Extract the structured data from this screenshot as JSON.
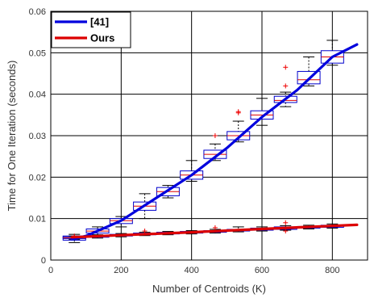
{
  "chart_data": {
    "type": "line",
    "xlabel": "Number of Centroids (K)",
    "ylabel": "Time for One Iteration (seconds)",
    "xlim": [
      0,
      900
    ],
    "ylim": [
      0,
      0.06
    ],
    "xticks": [
      0,
      200,
      400,
      600,
      800
    ],
    "yticks": [
      0,
      0.01,
      0.02,
      0.03,
      0.04,
      0.05,
      0.06
    ],
    "xtick_labels": [
      "0",
      "200",
      "400",
      "600",
      "800"
    ],
    "ytick_labels": [
      "0",
      "0.01",
      "0.02",
      "0.03",
      "0.04",
      "0.05",
      "0.06"
    ],
    "grid": true,
    "legend_position": "top-left",
    "series": [
      {
        "name": "[41]",
        "color": "#0000dd",
        "x": [
          60,
          100,
          200,
          300,
          400,
          500,
          600,
          700,
          800,
          870
        ],
        "values": [
          0.005,
          0.0058,
          0.0095,
          0.015,
          0.0205,
          0.027,
          0.0345,
          0.041,
          0.049,
          0.052
        ],
        "boxes": [
          {
            "x": 67,
            "q1": 0.0048,
            "median": 0.0052,
            "q3": 0.0058,
            "whisker_low": 0.0042,
            "whisker_high": 0.0062,
            "outliers": []
          },
          {
            "x": 133,
            "q1": 0.0065,
            "median": 0.007,
            "q3": 0.0075,
            "whisker_low": 0.0058,
            "whisker_high": 0.008,
            "outliers": []
          },
          {
            "x": 200,
            "q1": 0.0088,
            "median": 0.0095,
            "q3": 0.01,
            "whisker_low": 0.008,
            "whisker_high": 0.0105,
            "outliers": []
          },
          {
            "x": 267,
            "q1": 0.012,
            "median": 0.013,
            "q3": 0.014,
            "whisker_low": 0.01,
            "whisker_high": 0.016,
            "outliers": []
          },
          {
            "x": 333,
            "q1": 0.0155,
            "median": 0.0165,
            "q3": 0.0175,
            "whisker_low": 0.015,
            "whisker_high": 0.018,
            "outliers": []
          },
          {
            "x": 400,
            "q1": 0.0195,
            "median": 0.0205,
            "q3": 0.0215,
            "whisker_low": 0.019,
            "whisker_high": 0.024,
            "outliers": []
          },
          {
            "x": 467,
            "q1": 0.0245,
            "median": 0.0255,
            "q3": 0.0265,
            "whisker_low": 0.024,
            "whisker_high": 0.028,
            "outliers": [
              0.03
            ]
          },
          {
            "x": 533,
            "q1": 0.029,
            "median": 0.03,
            "q3": 0.031,
            "whisker_low": 0.0285,
            "whisker_high": 0.0335,
            "outliers": [
              0.0355,
              0.0358
            ]
          },
          {
            "x": 600,
            "q1": 0.034,
            "median": 0.035,
            "q3": 0.036,
            "whisker_low": 0.0325,
            "whisker_high": 0.039,
            "outliers": []
          },
          {
            "x": 667,
            "q1": 0.038,
            "median": 0.0385,
            "q3": 0.0395,
            "whisker_low": 0.037,
            "whisker_high": 0.0405,
            "outliers": [
              0.042,
              0.0465
            ]
          },
          {
            "x": 733,
            "q1": 0.0425,
            "median": 0.0435,
            "q3": 0.0455,
            "whisker_low": 0.042,
            "whisker_high": 0.049,
            "outliers": []
          },
          {
            "x": 800,
            "q1": 0.0475,
            "median": 0.049,
            "q3": 0.0505,
            "whisker_low": 0.047,
            "whisker_high": 0.053,
            "outliers": []
          }
        ]
      },
      {
        "name": "Ours",
        "color": "#dd0000",
        "x": [
          60,
          200,
          400,
          600,
          870
        ],
        "values": [
          0.0055,
          0.006,
          0.0067,
          0.0075,
          0.0085
        ],
        "boxes": [
          {
            "x": 67,
            "q1": 0.0052,
            "median": 0.0054,
            "q3": 0.0056,
            "whisker_low": 0.005,
            "whisker_high": 0.0058,
            "outliers": [
              0.0058
            ]
          },
          {
            "x": 133,
            "q1": 0.0055,
            "median": 0.0057,
            "q3": 0.0059,
            "whisker_low": 0.0053,
            "whisker_high": 0.0061,
            "outliers": []
          },
          {
            "x": 200,
            "q1": 0.0058,
            "median": 0.006,
            "q3": 0.0062,
            "whisker_low": 0.0056,
            "whisker_high": 0.0064,
            "outliers": []
          },
          {
            "x": 267,
            "q1": 0.0061,
            "median": 0.0063,
            "q3": 0.0065,
            "whisker_low": 0.0059,
            "whisker_high": 0.0067,
            "outliers": [
              0.007
            ]
          },
          {
            "x": 333,
            "q1": 0.0063,
            "median": 0.0065,
            "q3": 0.0067,
            "whisker_low": 0.0061,
            "whisker_high": 0.0069,
            "outliers": []
          },
          {
            "x": 400,
            "q1": 0.0065,
            "median": 0.0067,
            "q3": 0.0069,
            "whisker_low": 0.0063,
            "whisker_high": 0.0071,
            "outliers": []
          },
          {
            "x": 467,
            "q1": 0.0067,
            "median": 0.0069,
            "q3": 0.0071,
            "whisker_low": 0.0065,
            "whisker_high": 0.0074,
            "outliers": [
              0.0078
            ]
          },
          {
            "x": 533,
            "q1": 0.007,
            "median": 0.0072,
            "q3": 0.0074,
            "whisker_low": 0.0068,
            "whisker_high": 0.008,
            "outliers": []
          },
          {
            "x": 600,
            "q1": 0.0072,
            "median": 0.0075,
            "q3": 0.0077,
            "whisker_low": 0.007,
            "whisker_high": 0.008,
            "outliers": []
          },
          {
            "x": 667,
            "q1": 0.0074,
            "median": 0.0077,
            "q3": 0.008,
            "whisker_low": 0.0072,
            "whisker_high": 0.0083,
            "outliers": [
              0.007,
              0.009
            ]
          },
          {
            "x": 733,
            "q1": 0.0077,
            "median": 0.0079,
            "q3": 0.0081,
            "whisker_low": 0.0075,
            "whisker_high": 0.0084,
            "outliers": []
          },
          {
            "x": 800,
            "q1": 0.0079,
            "median": 0.0082,
            "q3": 0.0084,
            "whisker_low": 0.0077,
            "whisker_high": 0.0087,
            "outliers": []
          }
        ]
      }
    ]
  }
}
